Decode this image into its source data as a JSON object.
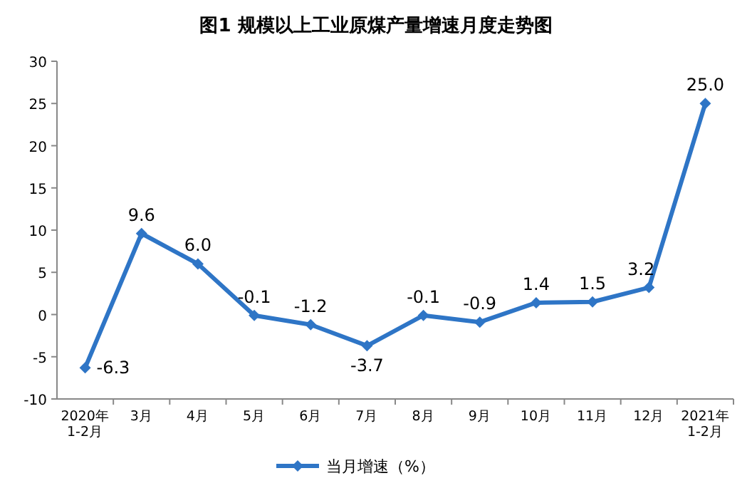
{
  "chart_data": {
    "type": "line",
    "title": "图1  规模以上工业原煤产量增速月度走势图",
    "categories": [
      "2020年\n1-2月",
      "3月",
      "4月",
      "5月",
      "6月",
      "7月",
      "8月",
      "9月",
      "10月",
      "11月",
      "12月",
      "2021年\n1-2月"
    ],
    "series": [
      {
        "name": "当月增速（%）",
        "color": "#2e75c6",
        "values": [
          -6.3,
          9.6,
          6.0,
          -0.1,
          -1.2,
          -3.7,
          -0.1,
          -0.9,
          1.4,
          1.5,
          3.2,
          25.0
        ],
        "value_labels": [
          "-6.3",
          "9.6",
          "6.0",
          "-0.1",
          "-1.2",
          "-3.7",
          "-0.1",
          "-0.9",
          "1.4",
          "1.5",
          "3.2",
          "25.0"
        ]
      }
    ],
    "ylim": [
      -10,
      30
    ],
    "yticks": [
      -10,
      -5,
      0,
      5,
      10,
      15,
      20,
      25,
      30
    ],
    "grid": false,
    "legend": "bottom",
    "marker": "diamond",
    "line_style": "solid"
  }
}
